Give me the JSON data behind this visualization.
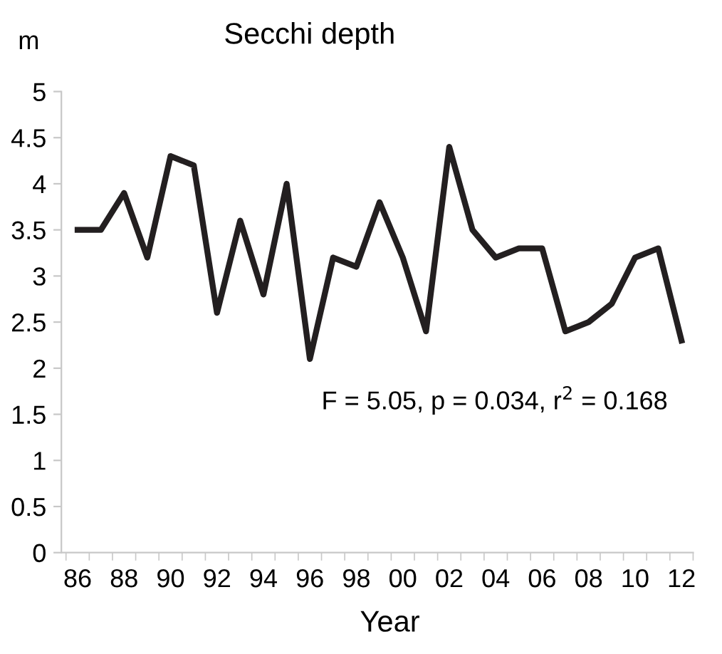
{
  "chart_data": {
    "type": "line",
    "title": "Secchi depth",
    "ylabel": "m",
    "xlabel": "Year",
    "categories": [
      "86",
      null,
      "88",
      null,
      "90",
      null,
      "92",
      null,
      "94",
      null,
      "96",
      null,
      "98",
      null,
      "00",
      null,
      "02",
      null,
      "04",
      null,
      "06",
      null,
      "08",
      null,
      "10",
      null,
      "12"
    ],
    "series": [
      {
        "color": "#231f20",
        "values": [
          3.5,
          3.5,
          3.9,
          3.2,
          4.3,
          4.2,
          2.6,
          3.6,
          2.8,
          4.0,
          2.1,
          3.2,
          3.1,
          3.8,
          3.2,
          2.4,
          4.4,
          3.5,
          3.2,
          3.3,
          3.3,
          2.4,
          2.5,
          2.7,
          3.2,
          3.3,
          2.3
        ]
      }
    ],
    "ylim": [
      0,
      5
    ],
    "yticks": [
      0,
      0.5,
      1,
      1.5,
      2,
      2.5,
      3,
      3.5,
      4,
      4.5,
      5
    ],
    "annotations": [
      "F = 5.05, p = 0.034, r$^{2}$ = 0.168"
    ],
    "grid": false,
    "legend": false,
    "marker": "none",
    "line_style": "solid"
  }
}
